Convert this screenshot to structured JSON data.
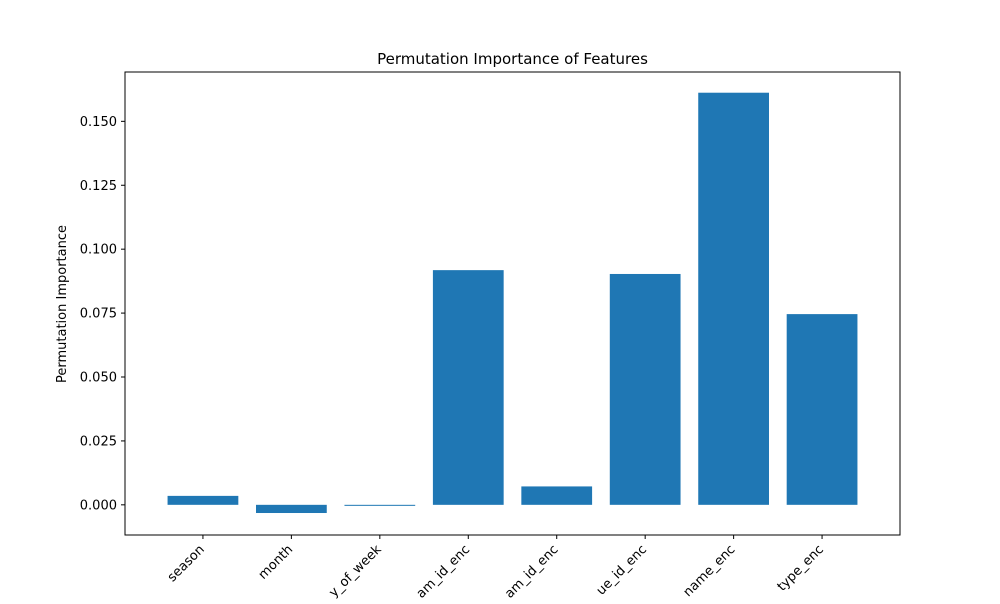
{
  "chart_data": {
    "type": "bar",
    "title": "Permutation Importance of Features",
    "xlabel": "",
    "ylabel": "Permutation Importance",
    "categories": [
      "season",
      "month",
      "day_of_week",
      "team_id_enc",
      "team_id_enc",
      "venue_id_enc",
      "name_enc",
      "type_enc"
    ],
    "tick_labels_visible": [
      "season",
      "month",
      "y_of_week",
      "am_id_enc",
      "am_id_enc",
      "ue_id_enc",
      "name_enc",
      "type_enc"
    ],
    "values": [
      0.0035,
      -0.0032,
      -0.0002,
      0.0918,
      0.0072,
      0.0903,
      0.1612,
      0.0746
    ],
    "ylim": [
      -0.0118,
      0.1693
    ],
    "yticks": [
      0.0,
      0.025,
      0.05,
      0.075,
      0.1,
      0.125,
      0.15
    ],
    "ytick_labels": [
      "0.000",
      "0.025",
      "0.050",
      "0.075",
      "0.100",
      "0.125",
      "0.150"
    ],
    "bar_color": "#1f77b4",
    "grid": false,
    "legend": "none"
  }
}
